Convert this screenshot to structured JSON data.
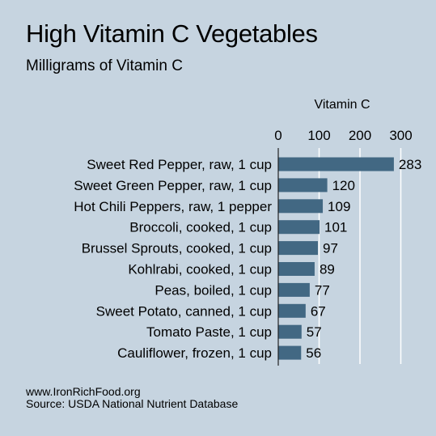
{
  "header": {
    "title": "High Vitamin C Vegetables",
    "subtitle": "Milligrams of Vitamin C"
  },
  "footer": {
    "url": "www.IronRichFood.org",
    "source": "Source: USDA National Nutrient Database"
  },
  "colors": {
    "background": "#c6d4e0",
    "bar": "#426883",
    "gridline": "#ffffff"
  },
  "chart_data": {
    "type": "bar",
    "orientation": "horizontal",
    "title": "High Vitamin C Vegetables",
    "subtitle": "Milligrams of Vitamin C",
    "xlabel": "Vitamin C",
    "ylabel": "",
    "xlim": [
      0,
      300
    ],
    "xticks": [
      0,
      100,
      200,
      300
    ],
    "axis_position": "top",
    "grid": true,
    "legend": "none",
    "categories": [
      "Sweet Red Pepper, raw, 1 cup",
      "Sweet Green Pepper, raw, 1 cup",
      "Hot Chili Peppers, raw, 1 pepper",
      "Broccoli, cooked, 1 cup",
      "Brussel Sprouts, cooked, 1 cup",
      "Kohlrabi, cooked, 1 cup",
      "Peas, boiled, 1 cup",
      "Sweet Potato, canned, 1 cup",
      "Tomato Paste, 1 cup",
      "Cauliflower, frozen, 1 cup"
    ],
    "values": [
      283,
      120,
      109,
      101,
      97,
      89,
      77,
      67,
      57,
      56
    ]
  }
}
